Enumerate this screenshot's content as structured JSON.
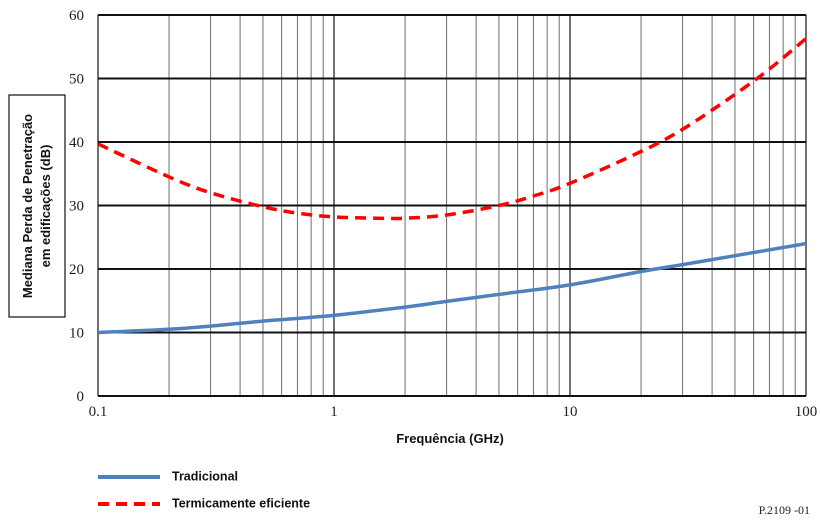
{
  "chart_data": {
    "type": "line",
    "xscale": "log",
    "xlim": [
      0.1,
      100
    ],
    "ylim": [
      0,
      60
    ],
    "xticks": [
      "0.1",
      "1",
      "10",
      "100"
    ],
    "yticks": [
      "0",
      "10",
      "20",
      "30",
      "40",
      "50",
      "60"
    ],
    "xlabel": "Frequência (GHz)",
    "ylabel": [
      "Mediana  Perda de Penetração",
      "em edificações (dB)"
    ],
    "grid": true,
    "legend_position": "bottom-left",
    "series": [
      {
        "name": "Tradicional",
        "color": "#4f81bd",
        "dash": "solid",
        "x": [
          0.1,
          0.2,
          0.3,
          0.5,
          1,
          2,
          3,
          5,
          10,
          20,
          30,
          50,
          100
        ],
        "y": [
          10,
          10.5,
          11,
          11.8,
          12.7,
          14,
          14.9,
          16,
          17.5,
          19.6,
          20.7,
          22.1,
          24
        ]
      },
      {
        "name": "Termicamente eficiente",
        "color": "#ff0000",
        "dash": "dashed",
        "x": [
          0.1,
          0.2,
          0.3,
          0.5,
          0.7,
          1,
          1.5,
          2,
          3,
          5,
          7,
          10,
          20,
          30,
          50,
          70,
          100
        ],
        "y": [
          39.7,
          34.5,
          32,
          29.8,
          28.8,
          28.2,
          28,
          28,
          28.5,
          30,
          31.5,
          33.5,
          38.5,
          42,
          47.5,
          51.5,
          56.3
        ]
      }
    ]
  },
  "figure_id": "P.2109 -01"
}
